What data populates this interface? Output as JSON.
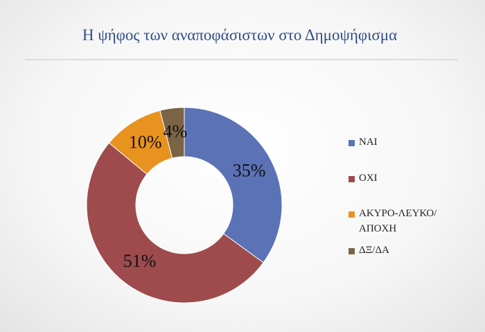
{
  "chart_data": {
    "type": "donut",
    "title": "Η ψήφος των αναποφάσιστων στο Δημοψήφισμα",
    "categories": [
      "ΝΑΙ",
      "ΟΧΙ",
      "ΑΚΥΡΟ-ΛΕΥΚΟ/ΑΠΟΧΗ",
      "ΔΞ/ΔΑ"
    ],
    "values": [
      35,
      51,
      10,
      4
    ],
    "value_labels": [
      "35%",
      "51%",
      "10%",
      "4%"
    ],
    "colors": [
      "#5b72b6",
      "#9f4b4d",
      "#e8921f",
      "#7b6446"
    ],
    "legend": "right"
  }
}
